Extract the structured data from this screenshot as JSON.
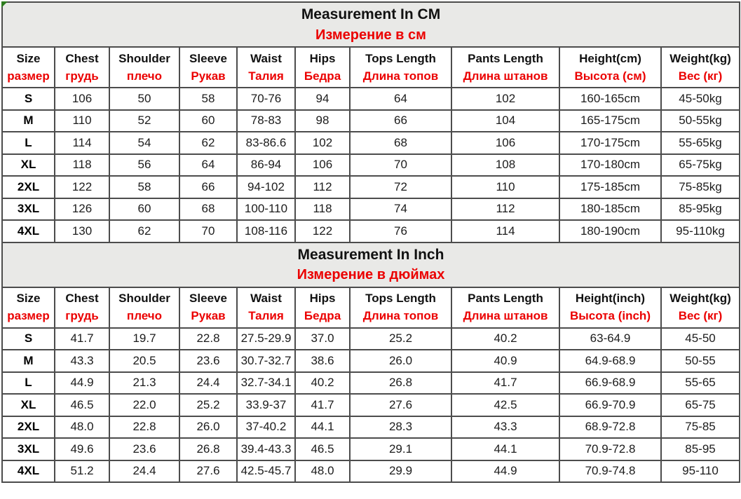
{
  "colors": {
    "red_text": "#eb0000",
    "border": "#4c4c4c",
    "title_bg": "#e9e9e7",
    "corner_marker_green": "#2e7d1e"
  },
  "cm_table": {
    "title_en": "Measurement In CM",
    "title_ru": "Измерение в см",
    "headers_en": [
      "Size",
      "Chest",
      "Shoulder",
      "Sleeve",
      "Waist",
      "Hips",
      "Tops Length",
      "Pants Length",
      "Height(cm)",
      "Weight(kg)"
    ],
    "headers_ru": [
      "размер",
      "грудь",
      "плечо",
      "Рукав",
      "Талия",
      "Бедра",
      "Длина топов",
      "Длина штанов",
      "Высота (см)",
      "Вес (кг)"
    ],
    "rows": [
      [
        "S",
        "106",
        "50",
        "58",
        "70-76",
        "94",
        "64",
        "102",
        "160-165cm",
        "45-50kg"
      ],
      [
        "M",
        "110",
        "52",
        "60",
        "78-83",
        "98",
        "66",
        "104",
        "165-175cm",
        "50-55kg"
      ],
      [
        "L",
        "114",
        "54",
        "62",
        "83-86.6",
        "102",
        "68",
        "106",
        "170-175cm",
        "55-65kg"
      ],
      [
        "XL",
        "118",
        "56",
        "64",
        "86-94",
        "106",
        "70",
        "108",
        "170-180cm",
        "65-75kg"
      ],
      [
        "2XL",
        "122",
        "58",
        "66",
        "94-102",
        "112",
        "72",
        "110",
        "175-185cm",
        "75-85kg"
      ],
      [
        "3XL",
        "126",
        "60",
        "68",
        "100-110",
        "118",
        "74",
        "112",
        "180-185cm",
        "85-95kg"
      ],
      [
        "4XL",
        "130",
        "62",
        "70",
        "108-116",
        "122",
        "76",
        "114",
        "180-190cm",
        "95-110kg"
      ]
    ]
  },
  "inch_table": {
    "title_en": "Measurement In Inch",
    "title_ru": "Измерение в дюймах",
    "headers_en": [
      "Size",
      "Chest",
      "Shoulder",
      "Sleeve",
      "Waist",
      "Hips",
      "Tops Length",
      "Pants Length",
      "Height(inch)",
      "Weight(kg)"
    ],
    "headers_ru": [
      "размер",
      "грудь",
      "плечо",
      "Рукав",
      "Талия",
      "Бедра",
      "Длина топов",
      "Длина штанов",
      "Высота (inch)",
      "Вес (кг)"
    ],
    "rows": [
      [
        "S",
        "41.7",
        "19.7",
        "22.8",
        "27.5-29.9",
        "37.0",
        "25.2",
        "40.2",
        "63-64.9",
        "45-50"
      ],
      [
        "M",
        "43.3",
        "20.5",
        "23.6",
        "30.7-32.7",
        "38.6",
        "26.0",
        "40.9",
        "64.9-68.9",
        "50-55"
      ],
      [
        "L",
        "44.9",
        "21.3",
        "24.4",
        "32.7-34.1",
        "40.2",
        "26.8",
        "41.7",
        "66.9-68.9",
        "55-65"
      ],
      [
        "XL",
        "46.5",
        "22.0",
        "25.2",
        "33.9-37",
        "41.7",
        "27.6",
        "42.5",
        "66.9-70.9",
        "65-75"
      ],
      [
        "2XL",
        "48.0",
        "22.8",
        "26.0",
        "37-40.2",
        "44.1",
        "28.3",
        "43.3",
        "68.9-72.8",
        "75-85"
      ],
      [
        "3XL",
        "49.6",
        "23.6",
        "26.8",
        "39.4-43.3",
        "46.5",
        "29.1",
        "44.1",
        "70.9-72.8",
        "85-95"
      ],
      [
        "4XL",
        "51.2",
        "24.4",
        "27.6",
        "42.5-45.7",
        "48.0",
        "29.9",
        "44.9",
        "70.9-74.8",
        "95-110"
      ]
    ]
  }
}
